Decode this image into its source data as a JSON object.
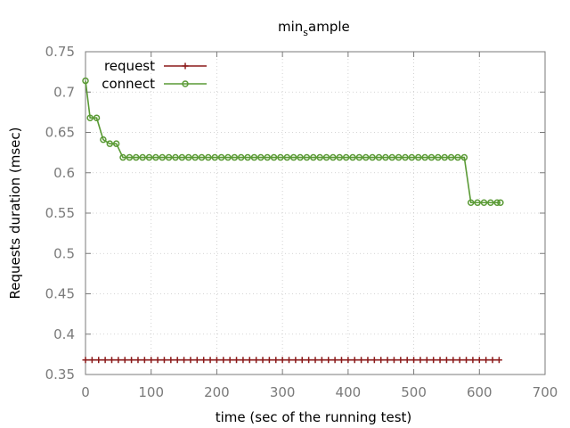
{
  "chart_data": {
    "type": "line",
    "title": "min",
    "title_subscript": "s",
    "title_suffix": "ample",
    "xlabel": "time (sec of the running test)",
    "ylabel": "Requests duration (msec)",
    "xlim": [
      0,
      700
    ],
    "ylim": [
      0.35,
      0.75
    ],
    "xticks": [
      0,
      100,
      200,
      300,
      400,
      500,
      600,
      700
    ],
    "yticks": [
      0.35,
      0.4,
      0.45,
      0.5,
      0.55,
      0.6,
      0.65,
      0.7,
      0.75
    ],
    "ytick_labels": [
      "0.35",
      "0.4",
      "0.45",
      "0.5",
      "0.55",
      "0.6",
      "0.65",
      "0.7",
      "0.75"
    ],
    "grid": true,
    "legend_position": "top-left",
    "series": [
      {
        "name": "request",
        "color": "#8b1a1a",
        "marker": "plus",
        "x": [
          0,
          10,
          20,
          30,
          40,
          50,
          60,
          70,
          80,
          90,
          100,
          110,
          120,
          130,
          140,
          150,
          160,
          170,
          180,
          190,
          200,
          210,
          220,
          230,
          240,
          250,
          260,
          270,
          280,
          290,
          300,
          310,
          320,
          330,
          340,
          350,
          360,
          370,
          380,
          390,
          400,
          410,
          420,
          430,
          440,
          450,
          460,
          470,
          480,
          490,
          500,
          510,
          520,
          530,
          540,
          550,
          560,
          570,
          580,
          590,
          600,
          610,
          620,
          630
        ],
        "y": [
          0.368,
          0.368,
          0.368,
          0.368,
          0.368,
          0.368,
          0.368,
          0.368,
          0.368,
          0.368,
          0.368,
          0.368,
          0.368,
          0.368,
          0.368,
          0.368,
          0.368,
          0.368,
          0.368,
          0.368,
          0.368,
          0.368,
          0.368,
          0.368,
          0.368,
          0.368,
          0.368,
          0.368,
          0.368,
          0.368,
          0.368,
          0.368,
          0.368,
          0.368,
          0.368,
          0.368,
          0.368,
          0.368,
          0.368,
          0.368,
          0.368,
          0.368,
          0.368,
          0.368,
          0.368,
          0.368,
          0.368,
          0.368,
          0.368,
          0.368,
          0.368,
          0.368,
          0.368,
          0.368,
          0.368,
          0.368,
          0.368,
          0.368,
          0.368,
          0.368,
          0.368,
          0.368,
          0.368,
          0.368
        ]
      },
      {
        "name": "connect",
        "color": "#5a9a35",
        "marker": "circle",
        "x": [
          0,
          7,
          17,
          27,
          37,
          47,
          57,
          67,
          77,
          87,
          97,
          107,
          117,
          127,
          137,
          147,
          157,
          167,
          177,
          187,
          197,
          207,
          217,
          227,
          237,
          247,
          257,
          267,
          277,
          287,
          297,
          307,
          317,
          327,
          337,
          347,
          357,
          367,
          377,
          387,
          397,
          407,
          417,
          427,
          437,
          447,
          457,
          467,
          477,
          487,
          497,
          507,
          517,
          527,
          537,
          547,
          557,
          567,
          577,
          587,
          597,
          607,
          617,
          627,
          632
        ],
        "y": [
          0.714,
          0.668,
          0.668,
          0.641,
          0.636,
          0.636,
          0.619,
          0.619,
          0.619,
          0.619,
          0.619,
          0.619,
          0.619,
          0.619,
          0.619,
          0.619,
          0.619,
          0.619,
          0.619,
          0.619,
          0.619,
          0.619,
          0.619,
          0.619,
          0.619,
          0.619,
          0.619,
          0.619,
          0.619,
          0.619,
          0.619,
          0.619,
          0.619,
          0.619,
          0.619,
          0.619,
          0.619,
          0.619,
          0.619,
          0.619,
          0.619,
          0.619,
          0.619,
          0.619,
          0.619,
          0.619,
          0.619,
          0.619,
          0.619,
          0.619,
          0.619,
          0.619,
          0.619,
          0.619,
          0.619,
          0.619,
          0.619,
          0.619,
          0.619,
          0.563,
          0.563,
          0.563,
          0.563,
          0.563,
          0.563
        ]
      }
    ]
  }
}
